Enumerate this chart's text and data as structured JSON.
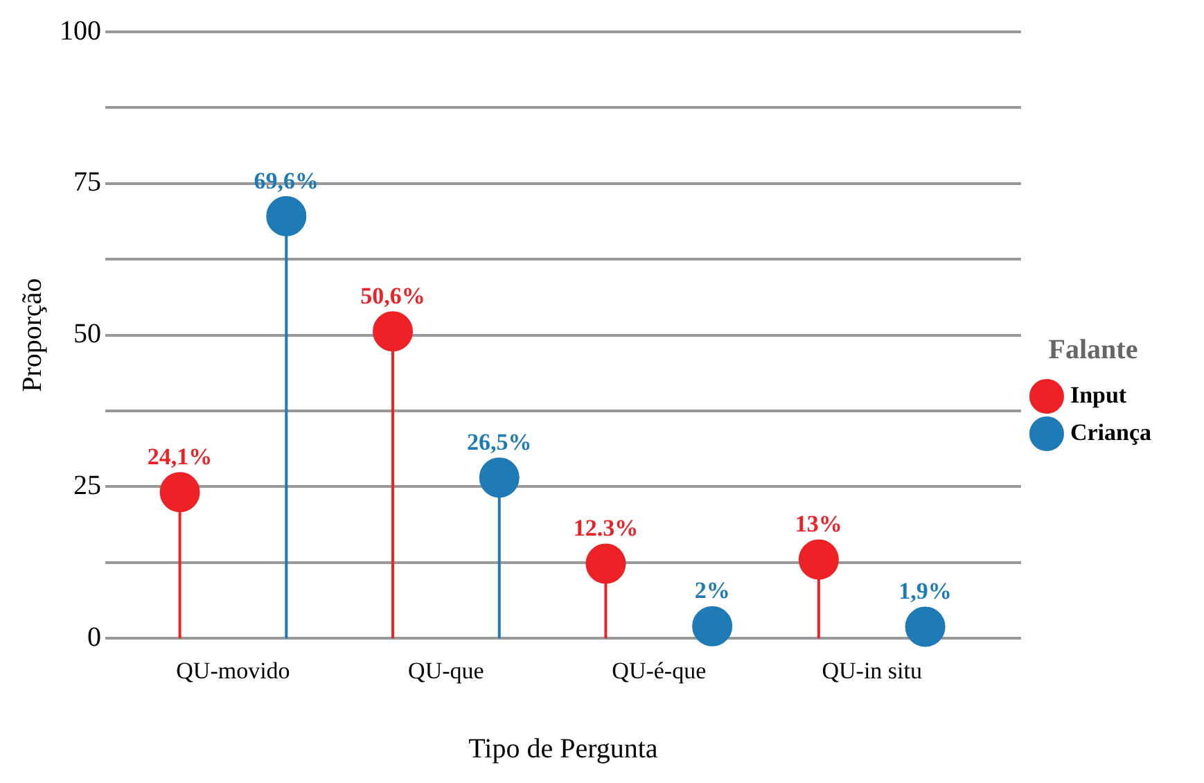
{
  "chart_data": {
    "type": "lollipop",
    "xlabel": "Tipo de Pergunta",
    "ylabel": "Proporção",
    "legend_title": "Falante",
    "legend": "right",
    "grid": "y",
    "marker": "circle",
    "categories": [
      "QU-movido",
      "QU-que",
      "QU-é-que",
      "QU-in situ"
    ],
    "ylim": [
      0,
      100
    ],
    "yticks": [
      0,
      {
        "value": 12.5,
        "label": null
      },
      25,
      {
        "value": 37.5,
        "label": null
      },
      50,
      {
        "value": 62.5,
        "label": null
      },
      75,
      {
        "value": 87.5,
        "label": null
      },
      100
    ],
    "series": [
      {
        "name": "Input",
        "color": "#ee2127",
        "values": [
          24.1,
          50.6,
          12.3,
          13
        ],
        "value_labels": [
          "24,1%",
          "50,6%",
          "12.3%",
          "13%"
        ]
      },
      {
        "name": "Criança",
        "color": "#1f7bb6",
        "values": [
          69.6,
          26.5,
          2,
          1.9
        ],
        "value_labels": [
          "69,6%",
          "26,5%",
          "2%",
          "1,9%"
        ]
      }
    ]
  }
}
